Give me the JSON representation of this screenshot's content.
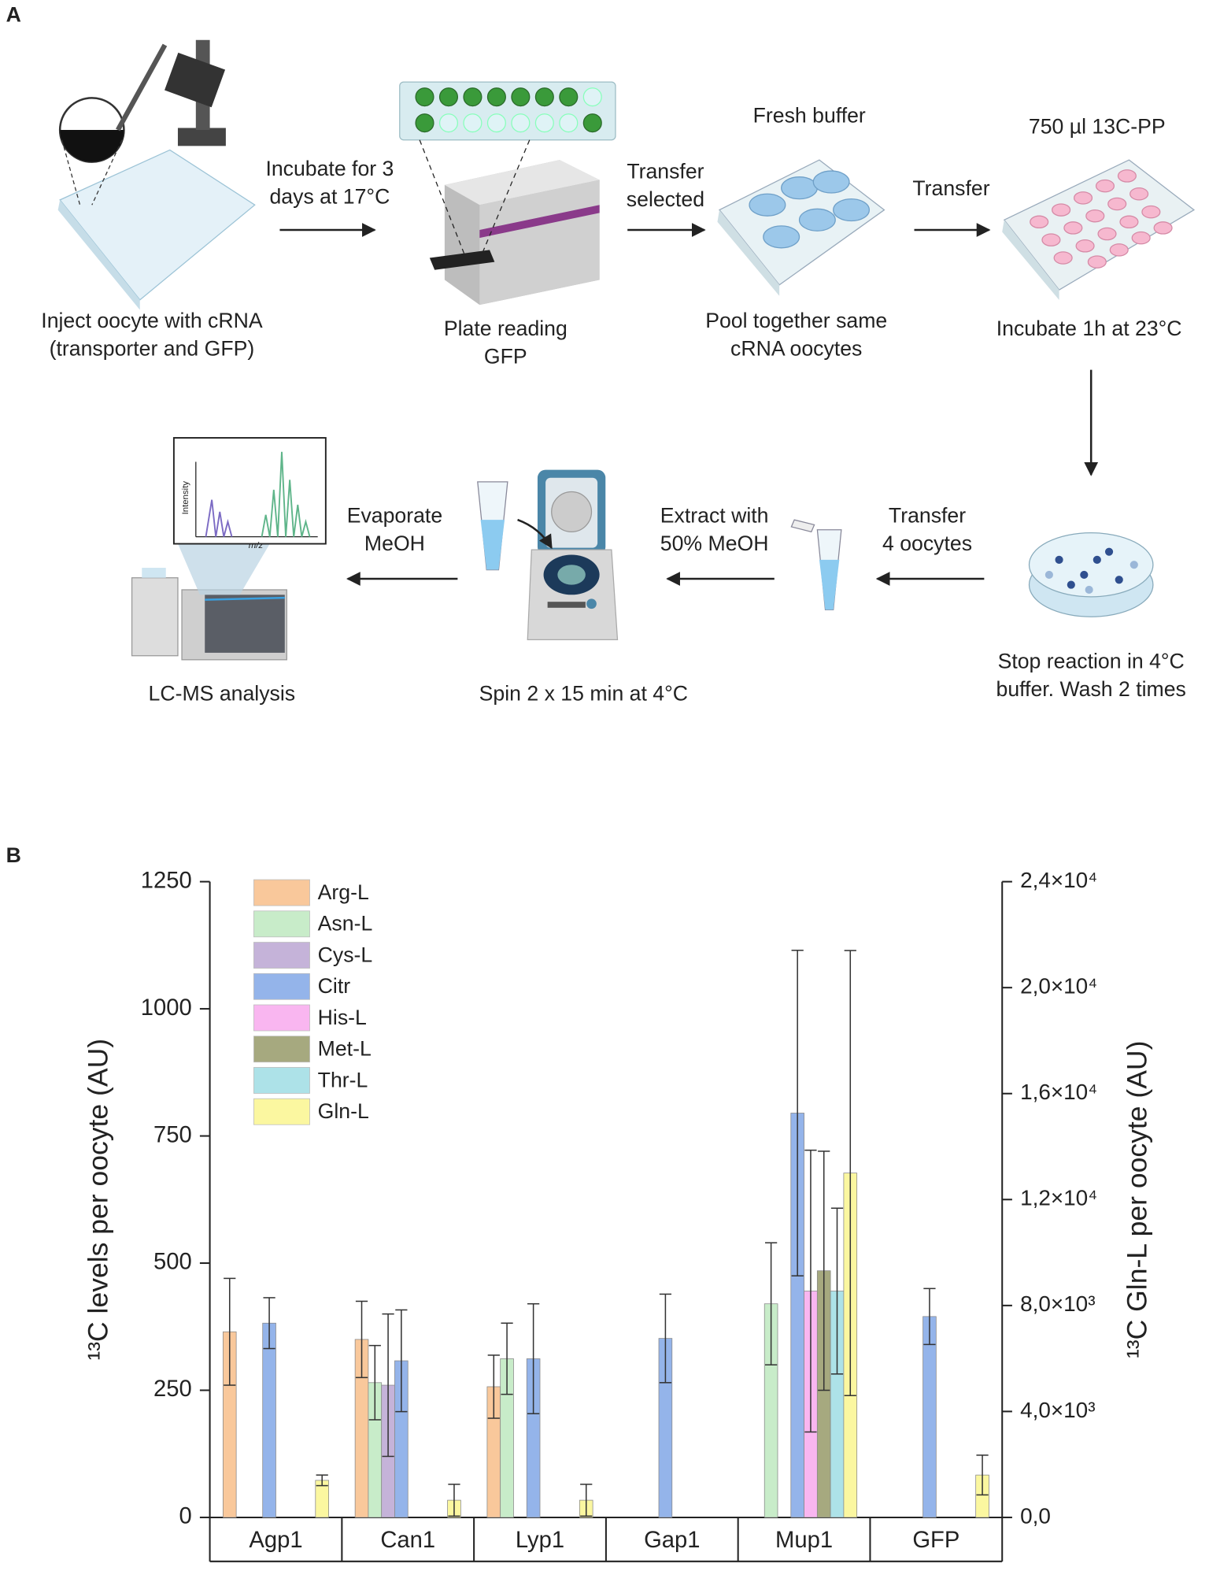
{
  "panel_a": {
    "label": "A",
    "steps": [
      {
        "lines": [
          "Inject oocyte with cRNA",
          "(transporter and GFP)"
        ]
      },
      {
        "lines": [
          "Incubate for 3",
          "days at 17°C"
        ]
      },
      {
        "lines": [
          "Plate reading",
          "GFP"
        ]
      },
      {
        "lines": [
          "Transfer",
          "selected"
        ]
      },
      {
        "lines": [
          "Fresh buffer"
        ]
      },
      {
        "lines": [
          "Pool together same",
          "cRNA oocytes"
        ]
      },
      {
        "lines": [
          "Transfer"
        ]
      },
      {
        "lines": [
          "750 µl 13C-PP"
        ]
      },
      {
        "lines": [
          "Incubate 1h at 23°C"
        ]
      },
      {
        "lines": [
          "Stop reaction in 4°C",
          "buffer. Wash 2 times"
        ]
      },
      {
        "lines": [
          "Transfer",
          "4 oocytes"
        ]
      },
      {
        "lines": [
          "Extract with",
          "50% MeOH"
        ]
      },
      {
        "lines": [
          "Spin 2 x 15 min at 4°C"
        ]
      },
      {
        "lines": [
          "Evaporate",
          "MeOH"
        ]
      },
      {
        "lines": [
          "LC-MS analysis"
        ]
      }
    ],
    "inset": {
      "y_label": "Intensity",
      "x_label": "m/z"
    }
  },
  "chart_data": {
    "type": "bar",
    "panel_label": "B",
    "y_label": "¹³C levels per oocyte (AU)",
    "y2_label": "¹³C Gln-L per oocyte (AU)",
    "categories": [
      "Agp1",
      "Can1",
      "Lyp1",
      "Gap1",
      "Mup1",
      "GFP"
    ],
    "ylim": [
      0,
      1250
    ],
    "yticks": [
      0,
      250,
      500,
      750,
      1000,
      1250
    ],
    "y2lim": [
      0,
      24000
    ],
    "y2ticks": [
      {
        "value": 0,
        "label": "0,0"
      },
      {
        "value": 4000,
        "label": "4,0×10³"
      },
      {
        "value": 8000,
        "label": "8,0×10³"
      },
      {
        "value": 12000,
        "label": "1,2×10⁴"
      },
      {
        "value": 16000,
        "label": "1,6×10⁴"
      },
      {
        "value": 20000,
        "label": "2,0×10⁴"
      },
      {
        "value": 24000,
        "label": "2,4×10⁴"
      }
    ],
    "legend": "upper left",
    "series": [
      {
        "name": "Arg-L",
        "color": "#f9c89b",
        "values": [
          365,
          350,
          257,
          null,
          null,
          null
        ],
        "errors": [
          105,
          75,
          62,
          null,
          null,
          null
        ]
      },
      {
        "name": "Asn-L",
        "color": "#c8ecc9",
        "values": [
          null,
          265,
          312,
          null,
          420,
          null
        ],
        "errors": [
          null,
          73,
          70,
          null,
          120,
          null
        ]
      },
      {
        "name": "Cys-L",
        "color": "#c5b3d9",
        "values": [
          null,
          260,
          null,
          null,
          null,
          null
        ],
        "errors": [
          null,
          140,
          null,
          null,
          null,
          null
        ]
      },
      {
        "name": "Citr",
        "color": "#94b4ea",
        "values": [
          382,
          308,
          312,
          352,
          795,
          395
        ],
        "errors": [
          50,
          100,
          108,
          87,
          320,
          55
        ]
      },
      {
        "name": "His-L",
        "color": "#f9b6f0",
        "values": [
          null,
          null,
          null,
          null,
          445,
          null
        ],
        "errors": [
          null,
          null,
          null,
          null,
          277,
          null
        ]
      },
      {
        "name": "Met-L",
        "color": "#a6a97f",
        "values": [
          null,
          null,
          null,
          null,
          485,
          null
        ],
        "errors": [
          null,
          null,
          null,
          null,
          235,
          null
        ]
      },
      {
        "name": "Thr-L",
        "color": "#ade2e8",
        "values": [
          null,
          null,
          null,
          null,
          445,
          null
        ],
        "errors": [
          null,
          null,
          null,
          null,
          163,
          null
        ]
      },
      {
        "name": "Gln-L",
        "color": "#fbf7a0",
        "axis": "y2",
        "values": [
          1400,
          650,
          650,
          null,
          13000,
          1600
        ],
        "errors": [
          200,
          600,
          600,
          null,
          8400,
          750
        ]
      }
    ]
  }
}
